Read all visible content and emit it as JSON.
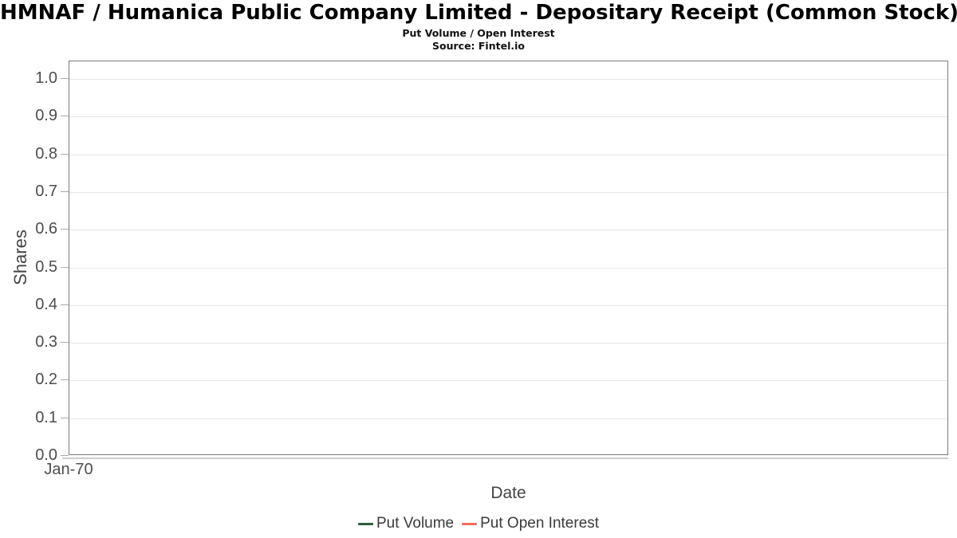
{
  "header": {
    "title": "HMNAF / Humanica Public Company Limited - Depositary Receipt (Common Stock)",
    "subtitle": "Put Volume / Open Interest",
    "source": "Source: Fintel.io"
  },
  "chart_data": {
    "type": "line",
    "title": "Put Volume / Open Interest",
    "xlabel": "Date",
    "ylabel": "Shares",
    "x_ticks": [
      "Jan-70"
    ],
    "y_ticks": [
      0.0,
      0.1,
      0.2,
      0.3,
      0.4,
      0.5,
      0.6,
      0.7,
      0.8,
      0.9,
      1.0
    ],
    "ylim": [
      0.0,
      1.046
    ],
    "grid": "horizontal",
    "legend_position": "bottom",
    "series": [
      {
        "name": "Put Volume",
        "color": "#2d5c3c",
        "values": []
      },
      {
        "name": "Put Open Interest",
        "color": "#f86960",
        "values": []
      }
    ]
  },
  "colors": {
    "background": "#ffffff",
    "plot_border": "#7d7d7d",
    "gridline": "#e6e6e6",
    "tick_mark": "#aaaaaa",
    "x_axis_line": "#cccccc",
    "axis_text": "#4d4d4d",
    "legend_text": "#3a3a3a"
  }
}
